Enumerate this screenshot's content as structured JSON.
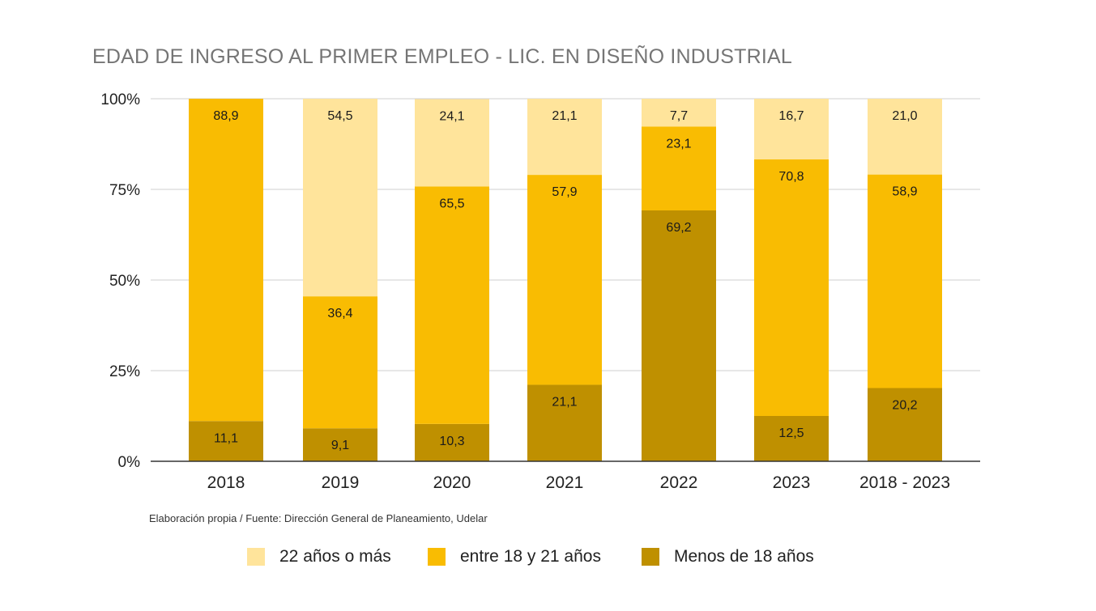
{
  "chart_data": {
    "type": "bar",
    "stacked": true,
    "title": "EDAD DE INGRESO AL PRIMER EMPLEO - LIC. EN DISEÑO INDUSTRIAL",
    "categories": [
      "2018",
      "2019",
      "2020",
      "2021",
      "2022",
      "2023",
      "2018 - 2023"
    ],
    "series": [
      {
        "name": "Menos de 18 años",
        "color": "#bf9000",
        "values": [
          11.1,
          9.1,
          10.3,
          21.1,
          69.2,
          12.5,
          20.2
        ],
        "labels": [
          "11,1",
          "9,1",
          "10,3",
          "21,1",
          "69,2",
          "12,5",
          "20,2"
        ]
      },
      {
        "name": "entre 18 y 21 años",
        "color": "#f9bc02",
        "values": [
          88.9,
          36.4,
          65.5,
          57.9,
          23.1,
          70.8,
          58.9
        ],
        "labels": [
          "88,9",
          "36,4",
          "65,5",
          "57,9",
          "23,1",
          "70,8",
          "58,9"
        ]
      },
      {
        "name": "22 años o más",
        "color": "#ffe49b",
        "values": [
          0,
          54.5,
          24.1,
          21.1,
          7.7,
          16.7,
          21.0
        ],
        "labels": [
          "",
          "54,5",
          "24,1",
          "21,1",
          "7,7",
          "16,7",
          "21,0"
        ]
      }
    ],
    "ylim": [
      0,
      100
    ],
    "yticks": [
      "0%",
      "25%",
      "50%",
      "75%",
      "100%"
    ],
    "ytick_values": [
      0,
      25,
      50,
      75,
      100
    ],
    "grid": true,
    "legend": "bottom",
    "legend_order": [
      "22 años o más",
      "entre 18 y 21 años",
      "Menos de 18 años"
    ]
  },
  "source_note": "Elaboración propia / Fuente: Dirección General de Planeamiento, Udelar"
}
